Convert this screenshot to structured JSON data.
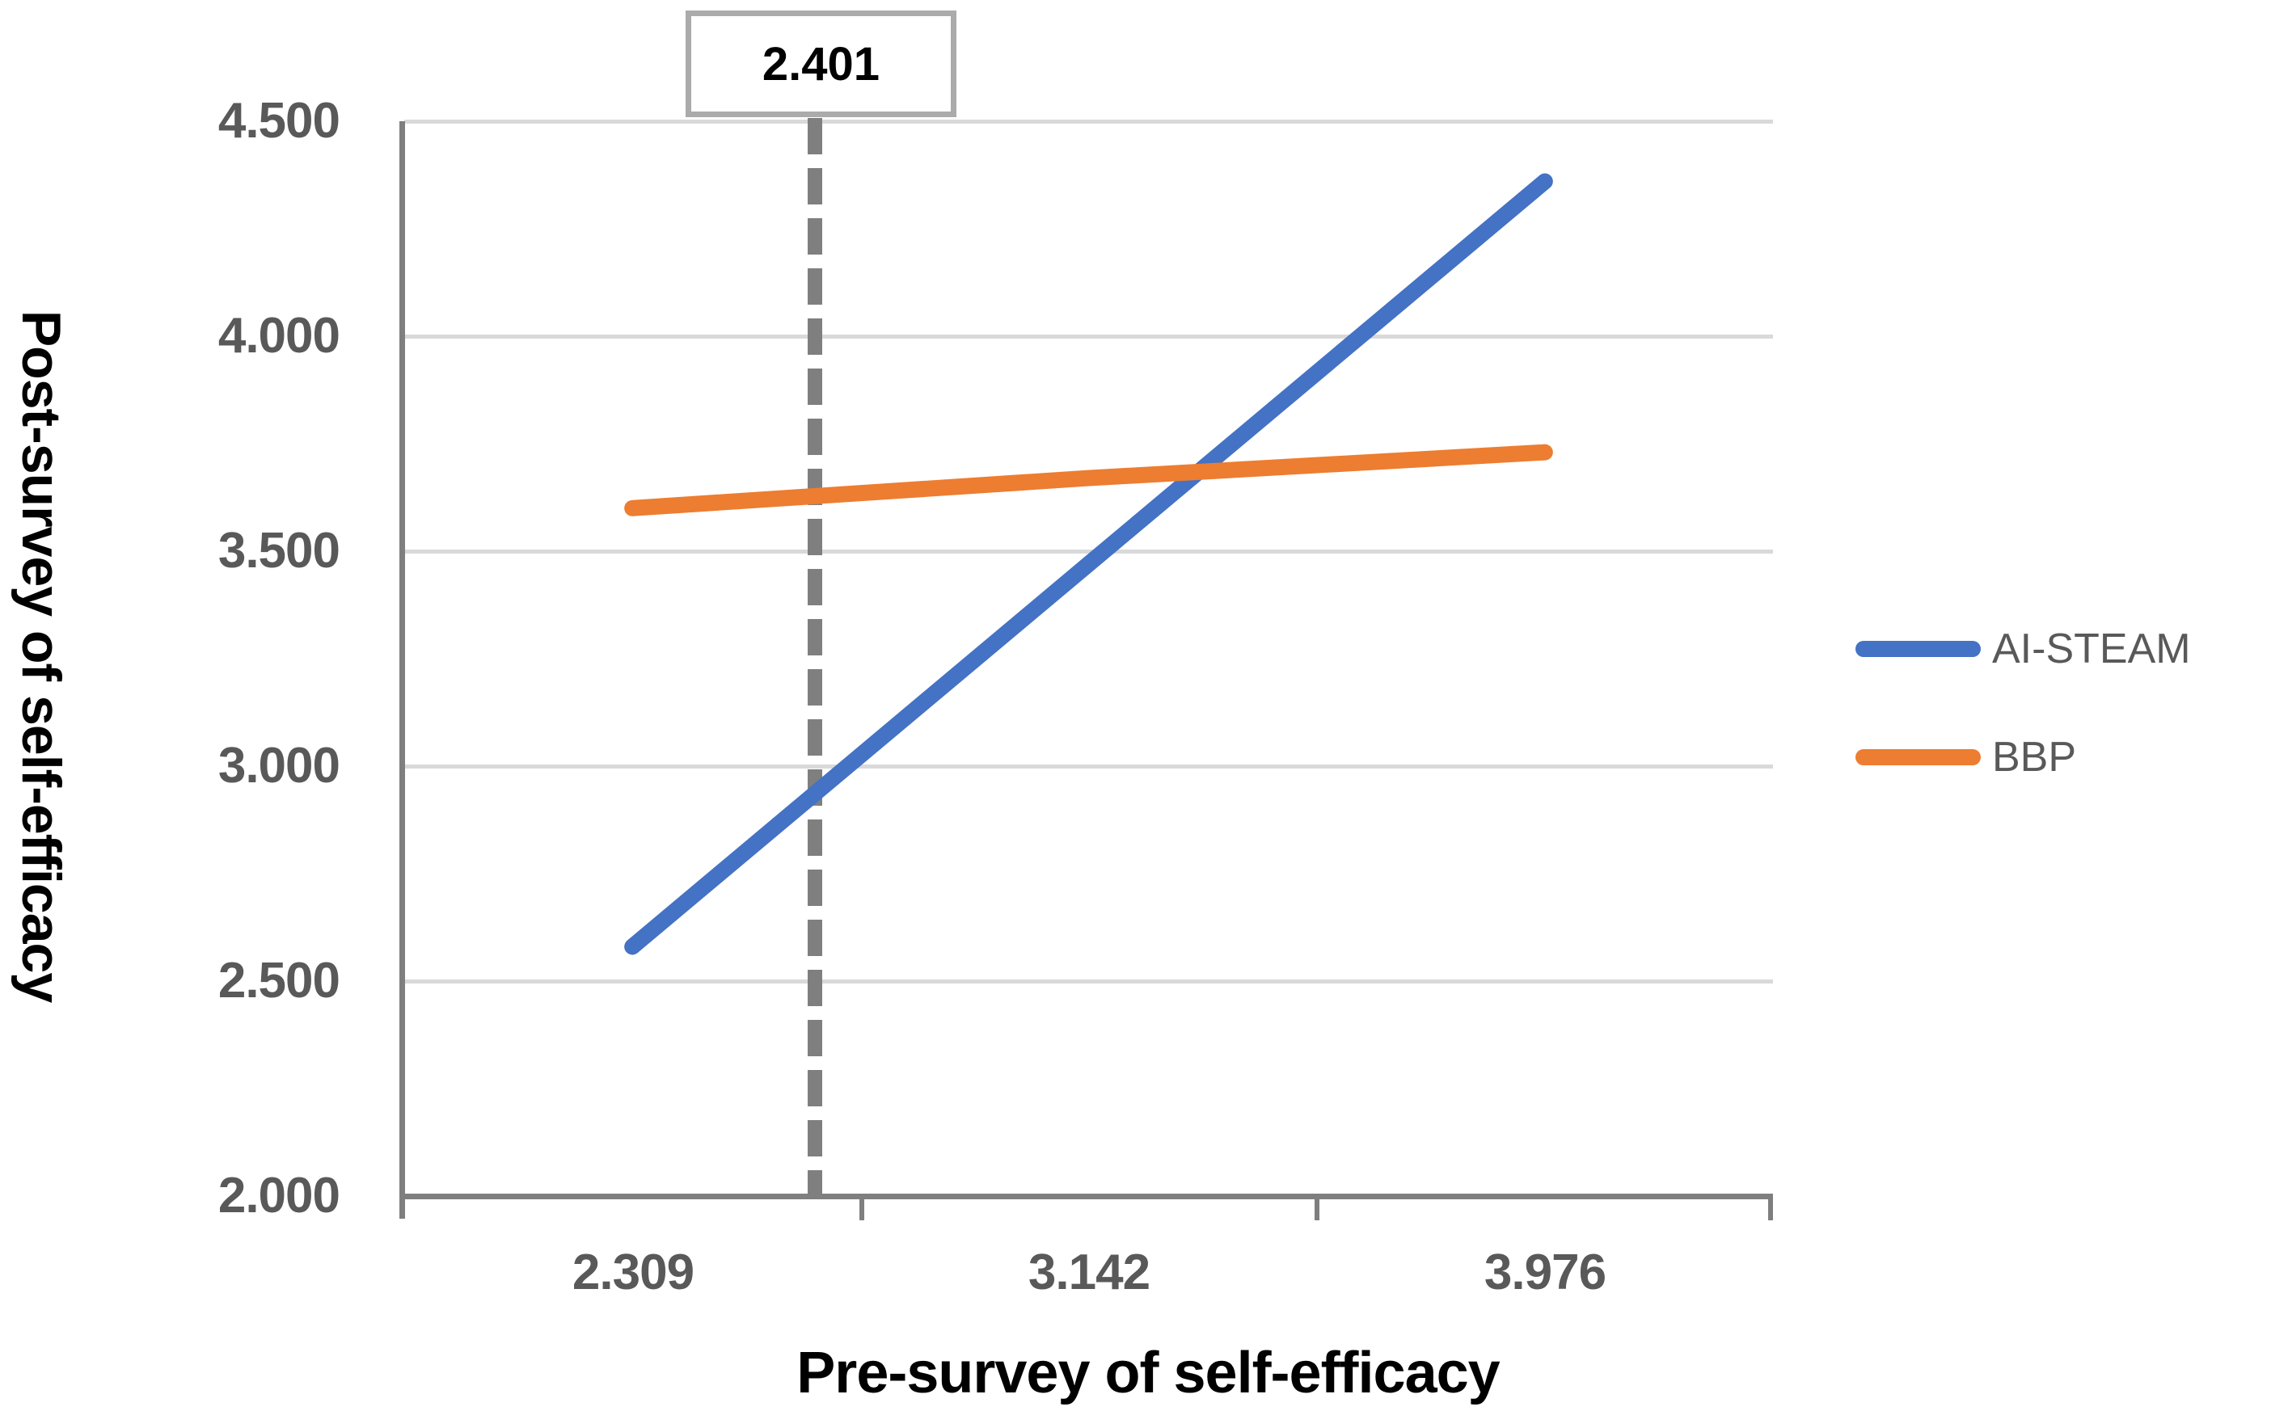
{
  "chart_data": {
    "type": "line",
    "title": "",
    "xlabel": "Pre-survey of self-efficacy",
    "ylabel": "Post-survey of self-efficacy",
    "x_categories": [
      "2.309",
      "3.142",
      "3.976"
    ],
    "x_values": [
      2.309,
      3.142,
      3.976
    ],
    "y_ticks": [
      "4.500",
      "4.000",
      "3.500",
      "3.000",
      "2.500",
      "2.000"
    ],
    "ylim": [
      2.0,
      4.5
    ],
    "grid": "horizontal",
    "legend_position": "right",
    "series": [
      {
        "name": "AI-STEAM",
        "color": "#4472C4",
        "values": [
          2.58,
          3.47,
          4.36
        ]
      },
      {
        "name": "BBP",
        "color": "#ED7D31",
        "values": [
          3.6,
          3.67,
          3.73
        ]
      }
    ],
    "annotation": {
      "label": "2.401",
      "type": "vertical-dashed-line",
      "color": "#7F7F7F"
    },
    "colors": {
      "axis": "#7F7F7F",
      "gridline": "#D9D9D9",
      "tick_label": "#595959",
      "axis_title": "#000000",
      "annotation_box_border": "#ABABAB"
    }
  }
}
